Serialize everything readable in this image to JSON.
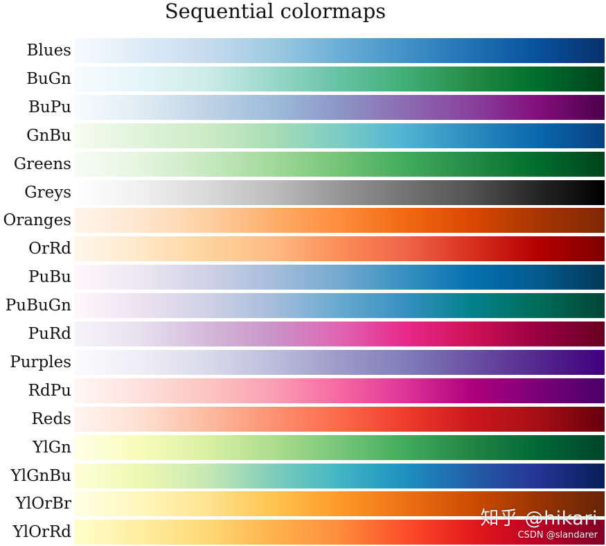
{
  "chart_data": {
    "type": "colormap",
    "title": "Sequential colormaps",
    "colormaps": [
      {
        "name": "Blues",
        "colors": [
          "#f7fbff",
          "#deebf7",
          "#c6dbef",
          "#9ecae1",
          "#6baed6",
          "#4292c6",
          "#2171b5",
          "#08519c",
          "#08306b"
        ]
      },
      {
        "name": "BuGn",
        "colors": [
          "#f7fcfd",
          "#e5f5f9",
          "#ccece6",
          "#99d8c9",
          "#66c2a4",
          "#41ae76",
          "#238b45",
          "#006d2c",
          "#00441b"
        ]
      },
      {
        "name": "BuPu",
        "colors": [
          "#f7fcfd",
          "#e0ecf4",
          "#bfd3e6",
          "#9ebcda",
          "#8c96c6",
          "#8c6bb1",
          "#88419d",
          "#810f7c",
          "#4d004b"
        ]
      },
      {
        "name": "GnBu",
        "colors": [
          "#f7fcf0",
          "#e0f3db",
          "#ccebc5",
          "#a8ddb5",
          "#7bccc4",
          "#4eb3d3",
          "#2b8cbe",
          "#0868ac",
          "#084081"
        ]
      },
      {
        "name": "Greens",
        "colors": [
          "#f7fcf5",
          "#e5f5e0",
          "#c7e9c0",
          "#a1d99b",
          "#74c476",
          "#41ab5d",
          "#238b45",
          "#006d2c",
          "#00441b"
        ]
      },
      {
        "name": "Greys",
        "colors": [
          "#ffffff",
          "#f0f0f0",
          "#d9d9d9",
          "#bdbdbd",
          "#969696",
          "#737373",
          "#525252",
          "#252525",
          "#000000"
        ]
      },
      {
        "name": "Oranges",
        "colors": [
          "#fff5eb",
          "#fee6ce",
          "#fdd0a2",
          "#fdae6b",
          "#fd8d3c",
          "#f16913",
          "#d94801",
          "#a63603",
          "#7f2704"
        ]
      },
      {
        "name": "OrRd",
        "colors": [
          "#fff7ec",
          "#fee8c8",
          "#fdd49e",
          "#fdbb84",
          "#fc8d59",
          "#ef6548",
          "#d7301f",
          "#b30000",
          "#7f0000"
        ]
      },
      {
        "name": "PuBu",
        "colors": [
          "#fff7fb",
          "#ece7f2",
          "#d0d1e6",
          "#a6bddb",
          "#74a9cf",
          "#3690c0",
          "#0570b0",
          "#045a8d",
          "#023858"
        ]
      },
      {
        "name": "PuBuGn",
        "colors": [
          "#fff7fb",
          "#ece2f0",
          "#d0d1e6",
          "#a6bddb",
          "#67a9cf",
          "#3690c0",
          "#02818a",
          "#016c59",
          "#014636"
        ]
      },
      {
        "name": "PuRd",
        "colors": [
          "#f7f4f9",
          "#e7e1ef",
          "#d4b9da",
          "#c994c7",
          "#df65b0",
          "#e7298a",
          "#ce1256",
          "#980043",
          "#67001f"
        ]
      },
      {
        "name": "Purples",
        "colors": [
          "#fcfbfd",
          "#efedf5",
          "#dadaeb",
          "#bcbddc",
          "#9e9ac8",
          "#807dba",
          "#6a51a3",
          "#54278f",
          "#3f007d"
        ]
      },
      {
        "name": "RdPu",
        "colors": [
          "#fff7f3",
          "#fde0dd",
          "#fcc5c0",
          "#fa9fb5",
          "#f768a1",
          "#dd3497",
          "#ae017e",
          "#7a0177",
          "#49006a"
        ]
      },
      {
        "name": "Reds",
        "colors": [
          "#fff5f0",
          "#fee0d2",
          "#fcbba1",
          "#fc9272",
          "#fb6a4a",
          "#ef3b2c",
          "#cb181d",
          "#a50f15",
          "#67000d"
        ]
      },
      {
        "name": "YlGn",
        "colors": [
          "#ffffe5",
          "#f7fcb9",
          "#d9f0a3",
          "#addd8e",
          "#78c679",
          "#41ab5d",
          "#238443",
          "#006837",
          "#004529"
        ]
      },
      {
        "name": "YlGnBu",
        "colors": [
          "#ffffd9",
          "#edf8b1",
          "#c7e9b4",
          "#7fcdbb",
          "#41b6c4",
          "#1d91c0",
          "#225ea8",
          "#253494",
          "#081d58"
        ]
      },
      {
        "name": "YlOrBr",
        "colors": [
          "#ffffe5",
          "#fff7bc",
          "#fee391",
          "#fec44f",
          "#fe9929",
          "#ec7014",
          "#cc4c02",
          "#993404",
          "#662506"
        ]
      },
      {
        "name": "YlOrRd",
        "colors": [
          "#ffffcc",
          "#ffeda0",
          "#fed976",
          "#feb24c",
          "#fd8d3c",
          "#fc4e2a",
          "#e31a1c",
          "#bd0026",
          "#800026"
        ]
      }
    ]
  },
  "watermark": {
    "line1": "知乎 @hikari",
    "line2": "CSDN @slandarer"
  }
}
